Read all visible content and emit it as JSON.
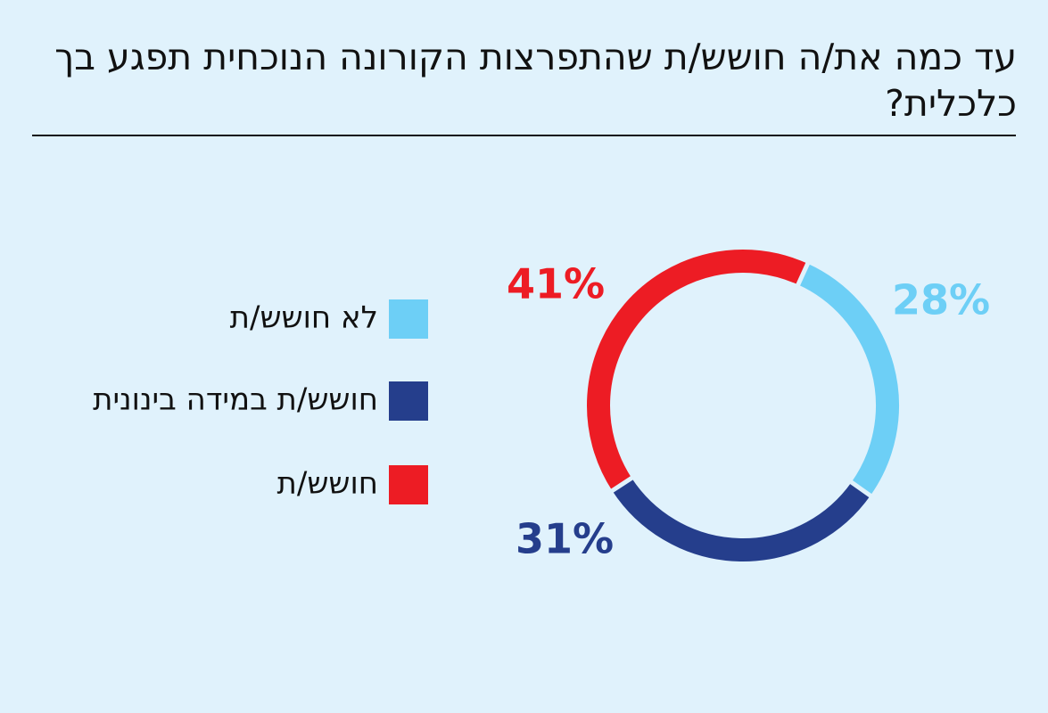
{
  "chart_data": {
    "type": "donut",
    "title": "עד כמה את/ה חושש/ת שהתפרצות הקורונה הנוכחית תפגע בך כלכלית?",
    "categories": [
      "לא חושש/ת",
      "חושש/ת במידה בינונית",
      "חושש/ת"
    ],
    "values": [
      28,
      31,
      41
    ],
    "value_labels": [
      "28%",
      "31%",
      "41%"
    ],
    "colors": [
      "#6dcff6",
      "#253e8c",
      "#ed1c24"
    ]
  }
}
